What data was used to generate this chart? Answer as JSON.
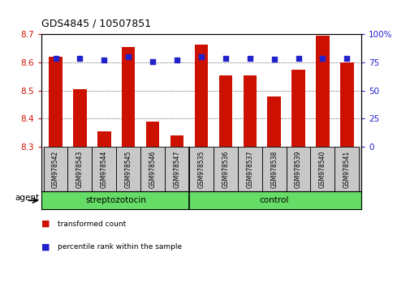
{
  "title": "GDS4845 / 10507851",
  "samples": [
    "GSM978542",
    "GSM978543",
    "GSM978544",
    "GSM978545",
    "GSM978546",
    "GSM978547",
    "GSM978535",
    "GSM978536",
    "GSM978537",
    "GSM978538",
    "GSM978539",
    "GSM978540",
    "GSM978541"
  ],
  "transformed_count": [
    8.62,
    8.505,
    8.355,
    8.655,
    8.39,
    8.34,
    8.665,
    8.555,
    8.555,
    8.48,
    8.575,
    8.695,
    8.6
  ],
  "percentile_rank": [
    79,
    79,
    77,
    80,
    76,
    77,
    80,
    79,
    79,
    78,
    79,
    79,
    79
  ],
  "groups": [
    "streptozotocin",
    "streptozotocin",
    "streptozotocin",
    "streptozotocin",
    "streptozotocin",
    "streptozotocin",
    "control",
    "control",
    "control",
    "control",
    "control",
    "control",
    "control"
  ],
  "bar_color": "#cc1100",
  "dot_color": "#2222cc",
  "ylim": [
    8.3,
    8.7
  ],
  "y_ticks": [
    8.3,
    8.4,
    8.5,
    8.6,
    8.7
  ],
  "right_ylim": [
    0,
    100
  ],
  "right_yticks": [
    0,
    25,
    50,
    75,
    100
  ],
  "right_yticklabels": [
    "0",
    "25",
    "50",
    "75",
    "100%"
  ],
  "bg_color": "#ffffff",
  "tick_label_color_left": "#cc1100",
  "tick_label_color_right": "#2222cc",
  "xlabel_area_color": "#c8c8c8",
  "green_color": "#66dd66",
  "agent_label": "agent",
  "legend_items": [
    "transformed count",
    "percentile rank within the sample"
  ],
  "group_boundary_idx": 6,
  "strep_label": "streptozotocin",
  "ctrl_label": "control",
  "dotted_gridlines": [
    8.4,
    8.5,
    8.6
  ]
}
